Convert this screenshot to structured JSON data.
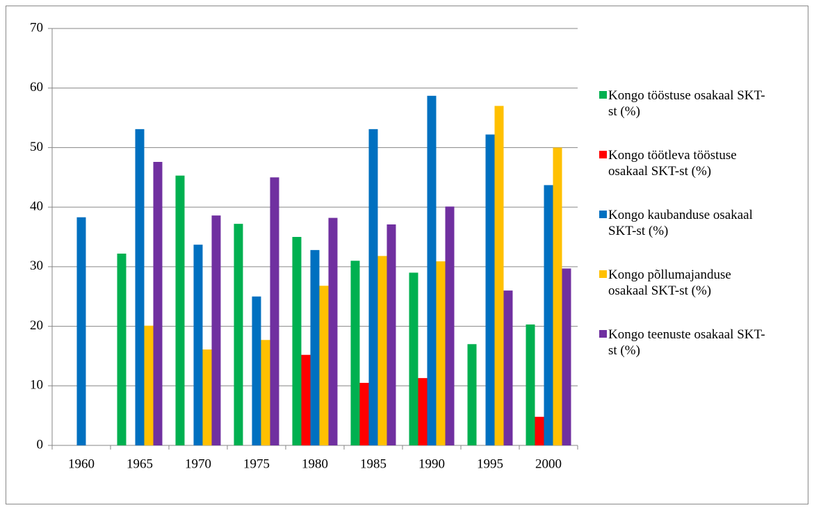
{
  "chart_data": {
    "type": "bar",
    "categories": [
      "1960",
      "1965",
      "1970",
      "1975",
      "1980",
      "1985",
      "1990",
      "1995",
      "2000"
    ],
    "series": [
      {
        "name": "Kongo tööstuse osakaal SKT-st (%)",
        "color": "#00b050",
        "values": [
          null,
          32.2,
          45.3,
          37.2,
          35.0,
          31.0,
          29.0,
          17.0,
          20.3
        ]
      },
      {
        "name": "Kongo töötleva tööstuse osakaal SKT-st (%)",
        "color": "#ff0000",
        "values": [
          null,
          null,
          null,
          null,
          15.2,
          10.5,
          11.3,
          null,
          4.8
        ]
      },
      {
        "name": "Kongo kaubanduse osakaal SKT-st (%)",
        "color": "#0070c0",
        "values": [
          38.3,
          53.1,
          33.7,
          25.0,
          32.8,
          53.1,
          58.7,
          52.2,
          43.7
        ]
      },
      {
        "name": "Kongo põllumajanduse osakaal SKT-st (%)",
        "color": "#ffc000",
        "values": [
          null,
          20.1,
          16.1,
          17.7,
          26.8,
          31.8,
          30.9,
          57.0,
          50.0
        ]
      },
      {
        "name": "Kongo teenuste osakaal SKT-st (%)",
        "color": "#7030a0",
        "values": [
          null,
          47.6,
          38.6,
          45.0,
          38.2,
          37.1,
          40.1,
          26.0,
          29.7
        ]
      }
    ],
    "ylim": [
      0,
      70
    ],
    "yticks": [
      0,
      10,
      20,
      30,
      40,
      50,
      60,
      70
    ],
    "grid": true,
    "legend": "right"
  }
}
